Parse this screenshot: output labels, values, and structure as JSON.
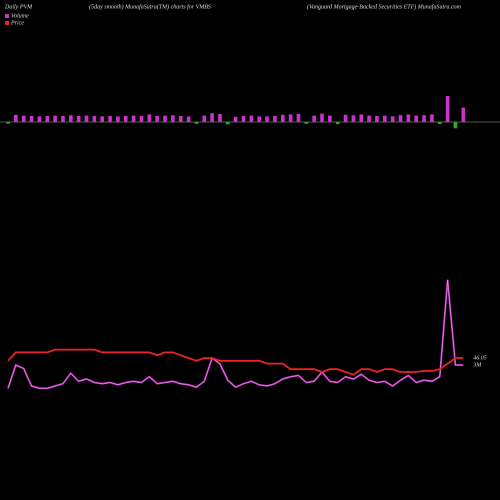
{
  "chart_data": {
    "type": "volume-price",
    "title_left": "Daily PVM",
    "title_center": "(5day smooth) MunafaSutra(TM) charts for VMBS",
    "title_right": "(Vanguard Mortgage-Backed Securities ETF) MunafaSutra.com",
    "bars": {
      "values": [
        1.2,
        1.8,
        1.6,
        1.5,
        1.4,
        1.5,
        1.6,
        1.5,
        1.7,
        1.5,
        1.6,
        1.5,
        1.4,
        1.5,
        1.4,
        1.5,
        1.6,
        1.5,
        1.9,
        1.5,
        1.6,
        1.7,
        1.5,
        1.4,
        1.3,
        1.6,
        2.2,
        2.0,
        1.6,
        1.3,
        1.5,
        1.6,
        1.4,
        1.4,
        1.5,
        1.8,
        1.9,
        2.0,
        1.3,
        1.6,
        2.1,
        1.6,
        1.5,
        1.8,
        1.7,
        1.9,
        1.6,
        1.5,
        1.6,
        1.4,
        1.7,
        1.9,
        1.6,
        1.7,
        1.9,
        1.4,
        6.5,
        4.5,
        3.6
      ],
      "up": [
        false,
        true,
        true,
        true,
        true,
        true,
        true,
        true,
        true,
        true,
        true,
        true,
        true,
        true,
        true,
        true,
        true,
        true,
        true,
        true,
        true,
        true,
        true,
        true,
        false,
        true,
        true,
        true,
        false,
        true,
        true,
        true,
        true,
        true,
        true,
        true,
        true,
        true,
        false,
        true,
        true,
        true,
        false,
        true,
        true,
        true,
        true,
        true,
        true,
        true,
        true,
        true,
        true,
        true,
        true,
        false,
        true,
        false,
        true
      ],
      "up_color": "#cc33cc",
      "down_color": "#33aa33",
      "ylim": [
        0,
        8
      ]
    },
    "series": [
      {
        "name": "Volume",
        "color": "#cc33cc",
        "values": [
          1.0,
          3.0,
          2.7,
          1.2,
          1.0,
          1.0,
          1.2,
          1.4,
          2.3,
          1.6,
          1.8,
          1.5,
          1.4,
          1.5,
          1.3,
          1.5,
          1.6,
          1.5,
          2.0,
          1.4,
          1.5,
          1.6,
          1.4,
          1.3,
          1.1,
          1.6,
          3.6,
          3.1,
          1.7,
          1.1,
          1.4,
          1.6,
          1.3,
          1.2,
          1.4,
          1.8,
          2.0,
          2.1,
          1.5,
          1.6,
          2.4,
          1.6,
          1.5,
          2.0,
          1.8,
          2.2,
          1.7,
          1.5,
          1.6,
          1.2,
          1.7,
          2.1,
          1.5,
          1.7,
          1.6,
          2.0,
          10.3,
          3.0,
          3.0
        ],
        "end_label": "3M",
        "ylim": [
          0,
          12
        ]
      },
      {
        "name": "Price",
        "color": "#ee2222",
        "values": [
          46.0,
          46.15,
          46.15,
          46.15,
          46.15,
          46.15,
          46.2,
          46.2,
          46.2,
          46.2,
          46.2,
          46.2,
          46.15,
          46.15,
          46.15,
          46.15,
          46.15,
          46.15,
          46.15,
          46.1,
          46.15,
          46.15,
          46.1,
          46.05,
          46.0,
          46.05,
          46.05,
          46.0,
          46.0,
          46.0,
          46.0,
          46.0,
          46.0,
          45.95,
          45.95,
          45.95,
          45.85,
          45.85,
          45.85,
          45.85,
          45.8,
          45.85,
          45.85,
          45.8,
          45.75,
          45.85,
          45.85,
          45.8,
          45.85,
          45.85,
          45.8,
          45.8,
          45.8,
          45.82,
          45.82,
          45.85,
          45.95,
          46.05,
          46.05
        ],
        "end_label": "46.05",
        "ylim": [
          45.3,
          47.8
        ]
      }
    ]
  }
}
